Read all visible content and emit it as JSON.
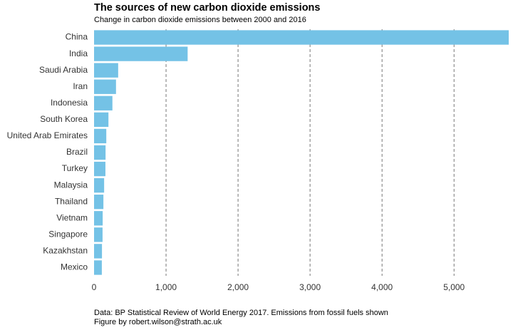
{
  "chart_data": {
    "type": "barh",
    "title": "The sources of new carbon dioxide emissions",
    "subtitle": "Change in carbon dioxide emissions between 2000 and 2016",
    "caption": [
      "Data: BP Statistical Review of World Energy 2017. Emissions from fossil fuels shown",
      "Figure by robert.wilson@strath.ac.uk"
    ],
    "categories": [
      "China",
      "India",
      "Saudi Arabia",
      "Iran",
      "Indonesia",
      "South Korea",
      "United Arab Emirates",
      "Brazil",
      "Turkey",
      "Malaysia",
      "Thailand",
      "Vietnam",
      "Singapore",
      "Kazakhstan",
      "Mexico"
    ],
    "values": [
      5760,
      1300,
      335,
      305,
      255,
      200,
      170,
      160,
      158,
      140,
      130,
      120,
      118,
      110,
      108
    ],
    "color": "#74c2e6",
    "xlim": [
      0,
      5760
    ],
    "xticks": [
      0,
      {
        "value": 1000,
        "label": "1,000"
      },
      {
        "value": 2000,
        "label": "2,000"
      },
      {
        "value": 3000,
        "label": "3,000"
      },
      {
        "value": 4000,
        "label": "4,000"
      },
      {
        "value": 5000,
        "label": "5,000"
      }
    ],
    "grid": true
  }
}
